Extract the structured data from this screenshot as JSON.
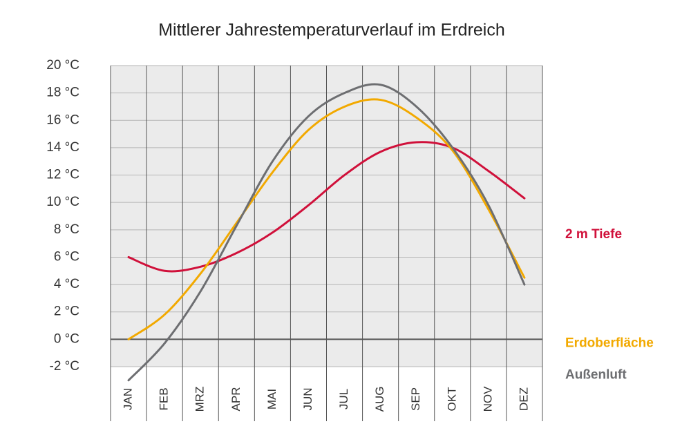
{
  "chart_data": {
    "type": "line",
    "title": "Mittlerer Jahrestemperaturverlauf im Erdreich",
    "categories": [
      "JAN",
      "FEB",
      "MRZ",
      "APR",
      "MAI",
      "JUN",
      "JUL",
      "AUG",
      "SEP",
      "OKT",
      "NOV",
      "DEZ"
    ],
    "series": [
      {
        "name": "2 m Tiefe",
        "color": "#d0103a",
        "values": [
          6.0,
          5.0,
          5.3,
          6.3,
          7.8,
          9.8,
          12.0,
          13.7,
          14.4,
          14.0,
          12.3,
          10.3
        ]
      },
      {
        "name": "Erdoberfläche",
        "color": "#f2a900",
        "values": [
          0.0,
          1.8,
          4.8,
          8.5,
          12.2,
          15.3,
          17.0,
          17.5,
          16.2,
          13.8,
          9.5,
          4.5
        ]
      },
      {
        "name": "Außenluft",
        "color": "#6d6e71",
        "values": [
          -3.0,
          -0.3,
          3.5,
          8.3,
          13.0,
          16.3,
          18.0,
          18.6,
          17.0,
          14.0,
          9.8,
          4.0
        ]
      }
    ],
    "ylim": [
      -2,
      20
    ],
    "yticks": [
      {
        "value": -2,
        "label": "-2 °C"
      },
      {
        "value": 0,
        "label": "0 °C"
      },
      {
        "value": 2,
        "label": "2 °C"
      },
      {
        "value": 4,
        "label": "4 °C"
      },
      {
        "value": 6,
        "label": "6 °C"
      },
      {
        "value": 8,
        "label": "8 °C"
      },
      {
        "value": 10,
        "label": "10 °C"
      },
      {
        "value": 12,
        "label": "12 °C"
      },
      {
        "value": 14,
        "label": "14 °C"
      },
      {
        "value": 16,
        "label": "16 °C"
      },
      {
        "value": 18,
        "label": "18 °C"
      },
      {
        "value": 20,
        "label": "20 °C"
      }
    ],
    "grid": true
  }
}
